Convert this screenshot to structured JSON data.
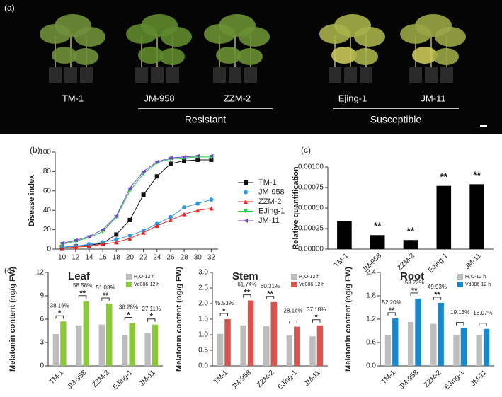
{
  "photo": {
    "panel_label": "(a)",
    "plants": [
      "TM-1",
      "JM-958",
      "ZZM-2",
      "Ejing-1",
      "JM-11"
    ],
    "groups": [
      "Resistant",
      "Susceptible"
    ]
  },
  "chart_data": [
    {
      "type": "line",
      "panel_label": "(b)",
      "y_label": "Disease index",
      "x": [
        10,
        12,
        14,
        16,
        18,
        20,
        22,
        24,
        26,
        28,
        30,
        32
      ],
      "xlim": [
        9,
        33
      ],
      "xticks": [
        10,
        12,
        14,
        16,
        18,
        20,
        22,
        24,
        26,
        28,
        30,
        32
      ],
      "ylim": [
        0,
        100
      ],
      "yticks": [
        0,
        20,
        40,
        60,
        80,
        100
      ],
      "series": [
        {
          "name": "TM-1",
          "color": "#111111",
          "marker": "square",
          "values": [
            2,
            3,
            4,
            6,
            15,
            30,
            56,
            75,
            88,
            91,
            92,
            92
          ]
        },
        {
          "name": "JM-958",
          "color": "#3399dd",
          "marker": "circle",
          "values": [
            2,
            3,
            5,
            7,
            10,
            14,
            19,
            26,
            33,
            43,
            47,
            51
          ]
        },
        {
          "name": "ZZM-2",
          "color": "#ee2222",
          "marker": "triangle-up",
          "values": [
            1,
            2,
            3,
            5,
            7,
            11,
            17,
            24,
            30,
            36,
            40,
            42
          ]
        },
        {
          "name": "EJing-1",
          "color": "#22cc44",
          "marker": "triangle-down",
          "values": [
            5,
            8,
            12,
            18,
            33,
            60,
            78,
            89,
            93,
            94,
            95,
            95
          ]
        },
        {
          "name": "JM-11",
          "color": "#7744cc",
          "marker": "triangle-left",
          "values": [
            6,
            9,
            13,
            20,
            34,
            63,
            80,
            90,
            94,
            95,
            96,
            96
          ]
        }
      ]
    },
    {
      "type": "bar",
      "panel_label": "(c)",
      "y_label": "Relative quantification",
      "categories": [
        "TM-1",
        "JM-958",
        "ZZM-2",
        "EJing-1",
        "JM-11"
      ],
      "values": [
        0.00034,
        0.00017,
        0.00011,
        0.00077,
        0.00079
      ],
      "color": "#000000",
      "significance": [
        null,
        "**",
        "**",
        "**",
        "**"
      ],
      "ylim": [
        0,
        0.001
      ],
      "yticks": [
        {
          "value": 0,
          "label": "0.00000"
        },
        {
          "value": 0.00025,
          "label": "0.00025"
        },
        {
          "value": 0.0005,
          "label": "0.00050"
        },
        {
          "value": 0.00075,
          "label": "0.00075"
        },
        {
          "value": 0.001,
          "label": "0.00100"
        }
      ]
    },
    {
      "type": "grouped-bar",
      "panel_label": "(d)",
      "title": "Leaf",
      "y_label": "Melatonin content (ng/g FW)",
      "categories": [
        "TM-1",
        "JM-958",
        "ZZM-2",
        "EJing-1",
        "JM-11"
      ],
      "series": [
        {
          "name": "H₂O-12 h",
          "color": "#bdbdbd",
          "values": [
            4.1,
            5.2,
            5.3,
            4.0,
            4.2
          ]
        },
        {
          "name": "Vd086-12 h",
          "color": "#8dc63f",
          "values": [
            5.7,
            8.3,
            8.0,
            5.5,
            5.3
          ]
        }
      ],
      "increase_labels": [
        "38.16%",
        "58.58%",
        "51.03%",
        "36.28%",
        "27.11%"
      ],
      "significance": [
        "*",
        "**",
        "**",
        "*",
        "*"
      ],
      "ylim": [
        0,
        12
      ],
      "yticks": [
        0,
        3,
        6,
        9,
        12
      ]
    },
    {
      "type": "grouped-bar",
      "title": "Stem",
      "y_label": "Melatonin content (ng/g FW)",
      "categories": [
        "TM-1",
        "JM-958",
        "ZZM-2",
        "EJing-1",
        "JM-11"
      ],
      "series": [
        {
          "name": "H₂O-12 h",
          "color": "#bdbdbd",
          "values": [
            1.03,
            1.3,
            1.28,
            0.98,
            0.95
          ]
        },
        {
          "name": "Vd086-12 h",
          "color": "#d9534f",
          "values": [
            1.5,
            2.1,
            2.05,
            1.26,
            1.3
          ]
        }
      ],
      "increase_labels": [
        "45.53%",
        "61.74%",
        "60.31%",
        "28.16%",
        "37.18%"
      ],
      "significance": [
        "*",
        "**",
        "**",
        null,
        "*"
      ],
      "ylim": [
        0,
        3
      ],
      "yticks": [
        {
          "value": 0,
          "label": "0.0"
        },
        0.5,
        {
          "value": 1,
          "label": "1.0"
        },
        1.5,
        {
          "value": 2,
          "label": "2.0"
        },
        2.5,
        {
          "value": 3,
          "label": "3.0"
        }
      ]
    },
    {
      "type": "grouped-bar",
      "title": "Root",
      "y_label": "Melatonin content (ng/g FW)",
      "categories": [
        "TM-1",
        "JM-958",
        "ZZM-2",
        "EJing-1",
        "JM-11"
      ],
      "series": [
        {
          "name": "H₂O-12 h",
          "color": "#bdbdbd",
          "values": [
            0.8,
            1.13,
            1.08,
            0.8,
            0.8
          ]
        },
        {
          "name": "Vd086-12 h",
          "color": "#1a87c9",
          "values": [
            1.22,
            1.73,
            1.62,
            0.97,
            0.95
          ]
        }
      ],
      "increase_labels": [
        "52.20%",
        "53.72%",
        "49.93%",
        "19.13%",
        "18.07%"
      ],
      "significance": [
        "**",
        "**",
        "**",
        null,
        null
      ],
      "ylim": [
        0,
        2.4
      ],
      "yticks": [
        {
          "value": 0,
          "label": "0.0"
        },
        0.6,
        1.2,
        1.8,
        2.4
      ]
    }
  ]
}
